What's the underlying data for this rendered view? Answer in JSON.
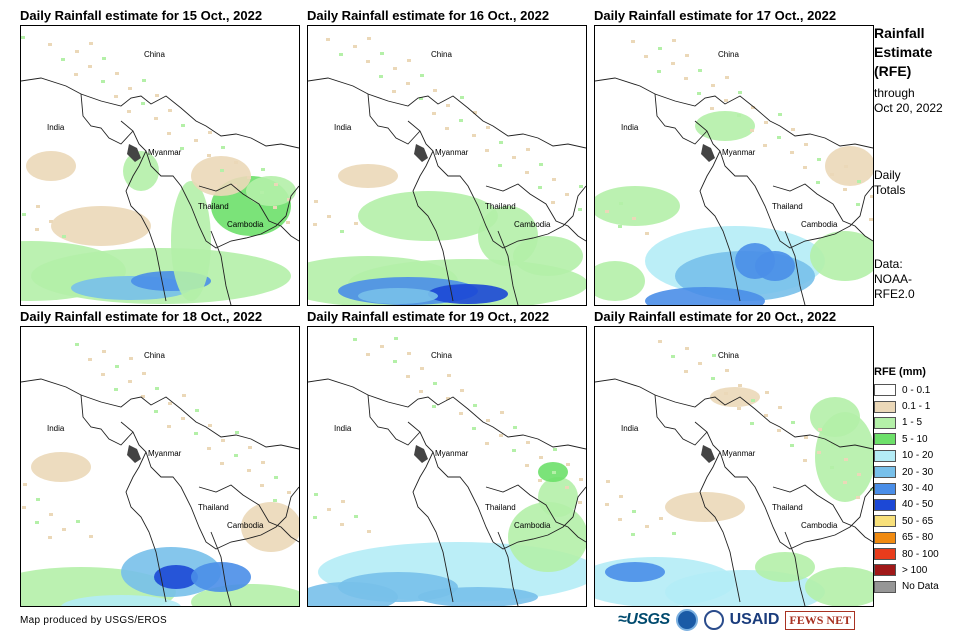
{
  "panels": [
    {
      "title": "Daily Rainfall estimate for 15 Oct., 2022"
    },
    {
      "title": "Daily Rainfall estimate for 16 Oct., 2022"
    },
    {
      "title": "Daily Rainfall estimate for 17 Oct., 2022"
    },
    {
      "title": "Daily Rainfall estimate for 18 Oct., 2022"
    },
    {
      "title": "Daily Rainfall estimate for 19 Oct., 2022"
    },
    {
      "title": "Daily Rainfall estimate for 20 Oct., 2022"
    }
  ],
  "map_labels": {
    "china": "China",
    "india": "India",
    "myanmar": "Myanmar",
    "thailand": "Thailand",
    "cambodia": "Cambodia"
  },
  "side": {
    "title_line1": "Rainfall",
    "title_line2": "Estimate",
    "title_line3": "(RFE)",
    "through": "through",
    "date": "Oct 20, 2022",
    "daily": "Daily",
    "totals": "Totals",
    "data_line1": "Data:",
    "data_line2": "NOAA-",
    "data_line3": "RFE2.0"
  },
  "legend": {
    "title": "RFE (mm)",
    "items": [
      {
        "label": "0 - 0.1",
        "color": "#ffffff"
      },
      {
        "label": "0.1 - 1",
        "color": "#ebd8b8"
      },
      {
        "label": "1 - 5",
        "color": "#b4f0a8"
      },
      {
        "label": "5 - 10",
        "color": "#6de06a"
      },
      {
        "label": "10 - 20",
        "color": "#b4ecf6"
      },
      {
        "label": "20 - 30",
        "color": "#78c0ea"
      },
      {
        "label": "30 - 40",
        "color": "#4a8ee8"
      },
      {
        "label": "40 - 50",
        "color": "#1c48d6"
      },
      {
        "label": "50 - 65",
        "color": "#f8e07a"
      },
      {
        "label": "65 - 80",
        "color": "#f08a10"
      },
      {
        "label": "80 - 100",
        "color": "#e83c1c"
      },
      {
        "label": "> 100",
        "color": "#a01818"
      },
      {
        "label": "No Data",
        "color": "#969696"
      }
    ]
  },
  "footer": {
    "credit": "Map produced by USGS/EROS"
  },
  "logos": {
    "usgs": "≈USGS",
    "usaid": "USAID",
    "fews": "FEWS NET"
  }
}
